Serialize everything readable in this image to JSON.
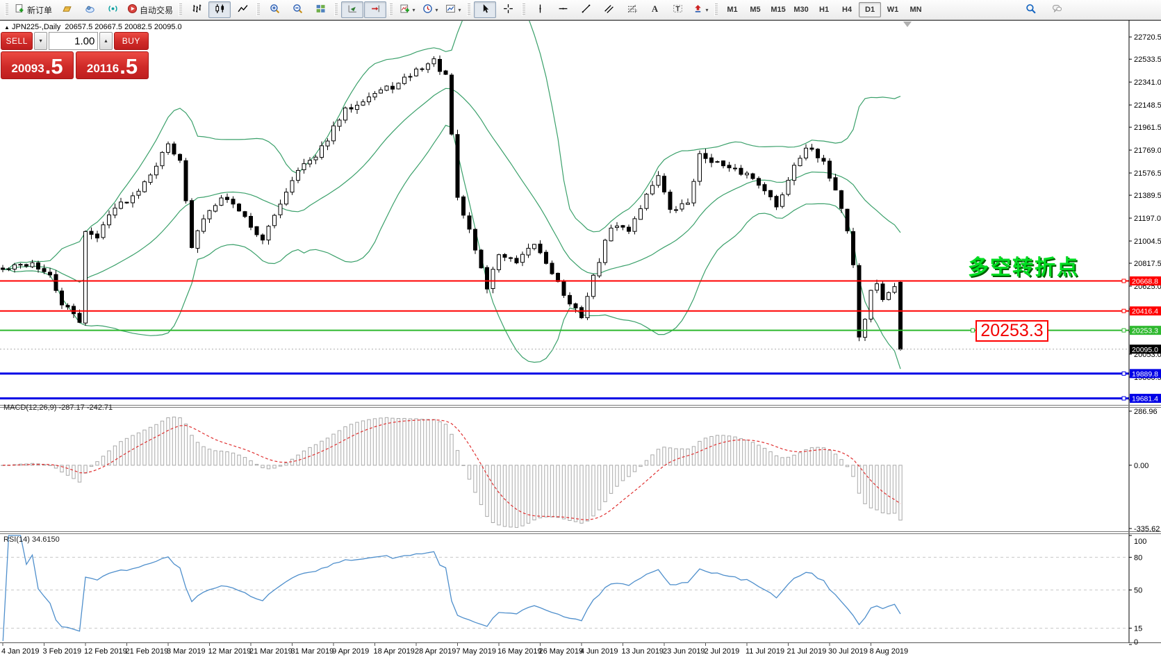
{
  "colors": {
    "accent_red": "#ff0000",
    "accent_green": "#2eb82e",
    "accent_blue": "#0000e6",
    "panel_red": "#cf2a28",
    "bull": "#ffffff",
    "bear": "#000000",
    "bands": "#3aa06a",
    "macd_signal": "#e03030",
    "macd_hist": "#a8a8a8",
    "rsi_line": "#4f8fcc",
    "bid_line": "#aaaaaa"
  },
  "toolbar": {
    "buttons": [
      {
        "name": "new-order",
        "icon": "new-order",
        "label": "新订单"
      },
      {
        "name": "market-watch",
        "icon": "gold"
      },
      {
        "name": "mql5-community",
        "icon": "cloud"
      },
      {
        "name": "signals",
        "icon": "signal"
      },
      {
        "name": "autotrading",
        "icon": "autotrading",
        "label": "自动交易"
      },
      {
        "name": "bar-chart",
        "icon": "bars",
        "sep": true
      },
      {
        "name": "candlestick-chart",
        "icon": "candles",
        "active": true
      },
      {
        "name": "line-chart",
        "icon": "linechart"
      },
      {
        "name": "zoom-in",
        "icon": "zoom-in",
        "sep": true
      },
      {
        "name": "zoom-out",
        "icon": "zoom-out"
      },
      {
        "name": "tile-windows",
        "icon": "tile"
      },
      {
        "name": "auto-scroll",
        "icon": "autoscroll",
        "sep": true,
        "active": true
      },
      {
        "name": "chart-shift",
        "icon": "shift",
        "active": true
      },
      {
        "name": "indicators-list",
        "icon": "indicators",
        "sep": true,
        "dropdown": true
      },
      {
        "name": "periods",
        "icon": "clock",
        "dropdown": true
      },
      {
        "name": "templates",
        "icon": "template",
        "dropdown": true
      },
      {
        "name": "cursor",
        "icon": "cursor",
        "sep": true,
        "active": true
      },
      {
        "name": "crosshair",
        "icon": "crosshair"
      },
      {
        "name": "vertical-line",
        "icon": "vline",
        "sep": true
      },
      {
        "name": "horizontal-line",
        "icon": "hline"
      },
      {
        "name": "trendline",
        "icon": "trend"
      },
      {
        "name": "equidistant-channel",
        "icon": "channel"
      },
      {
        "name": "fibonacci-retracement",
        "icon": "fibo"
      },
      {
        "name": "text",
        "icon": "textA"
      },
      {
        "name": "text-label",
        "icon": "labelT"
      },
      {
        "name": "arrows",
        "icon": "arrows",
        "dropdown": true
      }
    ],
    "timeframes": [
      "M1",
      "M5",
      "M15",
      "M30",
      "H1",
      "H4",
      "D1",
      "W1",
      "MN"
    ],
    "active_timeframe": "D1",
    "right_buttons": [
      {
        "name": "search",
        "icon": "search"
      },
      {
        "name": "community-chat",
        "icon": "chat"
      }
    ]
  },
  "symbol_info": {
    "symbol": "JPN225-,Daily",
    "open": "20657.5",
    "high": "20667.5",
    "low": "20082.5",
    "close": "20095.0"
  },
  "one_click": {
    "sell_label": "SELL",
    "buy_label": "BUY",
    "volume": "1.00",
    "sell_price_main": "20093",
    "sell_price_big": ".5",
    "buy_price_main": "20116",
    "buy_price_big": ".5"
  },
  "price_axis": {
    "ticks": [
      "22720.5",
      "22533.5",
      "22341.0",
      "22148.5",
      "21961.5",
      "21769.0",
      "21576.5",
      "21389.5",
      "21197.0",
      "21004.5",
      "20817.5",
      "20625.0",
      "20432.5",
      "20240.0",
      "20053.0",
      "19860.5",
      "19668.0"
    ]
  },
  "hlines": [
    {
      "name": "resistance-1",
      "label": "20668.8",
      "price": 20668.8,
      "color": "#ff0000",
      "width": 2
    },
    {
      "name": "resistance-2",
      "label": "20416.4",
      "price": 20416.4,
      "color": "#ff0000",
      "width": 2
    },
    {
      "name": "pivot-green",
      "label": "20253.3",
      "price": 20253.3,
      "color": "#2eb82e",
      "width": 2,
      "extra_handle_x": 1400
    },
    {
      "name": "support-1",
      "label": "19889.8",
      "price": 19889.8,
      "color": "#0000e6",
      "width": 3
    },
    {
      "name": "support-2",
      "label": "19681.4",
      "price": 19681.4,
      "color": "#0000e6",
      "width": 3
    }
  ],
  "current_price": {
    "label": "20095.0",
    "price": 20095.0
  },
  "annotation": {
    "text": "多空转折点"
  },
  "callout": {
    "text": "20253.3"
  },
  "macd": {
    "label": "MACD(12,26,9)",
    "values": "-287.17 -242.71",
    "axis": [
      "286.96",
      "0.00",
      "-335.62"
    ],
    "axis_values": [
      286.96,
      0,
      -335.62
    ]
  },
  "rsi": {
    "label": "RSI(14)",
    "value": "34.6150",
    "axis": [
      "100",
      "80",
      "50",
      "15",
      "0"
    ],
    "axis_values": [
      100,
      80,
      50,
      15,
      0
    ],
    "levels": [
      80,
      50,
      15
    ]
  },
  "dates": [
    "4 Jan 2019",
    "3 Feb 2019",
    "12 Feb 2019",
    "21 Feb 2019",
    "3 Mar 2019",
    "12 Mar 2019",
    "21 Mar 2019",
    "31 Mar 2019",
    "9 Apr 2019",
    "18 Apr 2019",
    "28 Apr 2019",
    "7 May 2019",
    "16 May 2019",
    "26 May 2019",
    "4 Jun 2019",
    "13 Jun 2019",
    "23 Jun 2019",
    "2 Jul 2019",
    "11 Jul 2019",
    "21 Jul 2019",
    "30 Jul 2019",
    "8 Aug 2019"
  ],
  "chart_data": {
    "type": "candlestick",
    "title": "JPN225- Daily with Bollinger Bands, MACD(12,26,9), RSI(14)",
    "bars": 153,
    "seed": 42,
    "noise": 26,
    "price_anchors": [
      [
        0,
        20760
      ],
      [
        3,
        20800
      ],
      [
        5,
        20820
      ],
      [
        8,
        20700
      ],
      [
        10,
        20480
      ],
      [
        12,
        20380
      ],
      [
        13,
        20330
      ],
      [
        14,
        21100
      ],
      [
        16,
        21020
      ],
      [
        18,
        21250
      ],
      [
        22,
        21380
      ],
      [
        26,
        21650
      ],
      [
        28,
        21820
      ],
      [
        30,
        21700
      ],
      [
        32,
        20950
      ],
      [
        34,
        21200
      ],
      [
        37,
        21390
      ],
      [
        40,
        21270
      ],
      [
        44,
        21000
      ],
      [
        47,
        21330
      ],
      [
        50,
        21620
      ],
      [
        53,
        21700
      ],
      [
        56,
        21950
      ],
      [
        58,
        22100
      ],
      [
        61,
        22200
      ],
      [
        64,
        22270
      ],
      [
        67,
        22320
      ],
      [
        70,
        22440
      ],
      [
        73,
        22520
      ],
      [
        75,
        22380
      ],
      [
        76,
        21900
      ],
      [
        77,
        21350
      ],
      [
        79,
        21100
      ],
      [
        82,
        20610
      ],
      [
        84,
        20900
      ],
      [
        87,
        20810
      ],
      [
        90,
        20980
      ],
      [
        93,
        20750
      ],
      [
        96,
        20460
      ],
      [
        98,
        20380
      ],
      [
        100,
        20700
      ],
      [
        103,
        21130
      ],
      [
        106,
        21100
      ],
      [
        109,
        21390
      ],
      [
        111,
        21570
      ],
      [
        113,
        21250
      ],
      [
        116,
        21330
      ],
      [
        118,
        21720
      ],
      [
        120,
        21690
      ],
      [
        123,
        21600
      ],
      [
        126,
        21570
      ],
      [
        129,
        21450
      ],
      [
        131,
        21280
      ],
      [
        134,
        21650
      ],
      [
        136,
        21800
      ],
      [
        139,
        21650
      ],
      [
        141,
        21450
      ],
      [
        143,
        21100
      ],
      [
        144,
        20810
      ],
      [
        145,
        20200
      ],
      [
        146,
        20350
      ],
      [
        147,
        20580
      ],
      [
        148,
        20650
      ],
      [
        149,
        20520
      ],
      [
        150,
        20550
      ],
      [
        151,
        20630
      ],
      [
        152,
        20657.5
      ]
    ],
    "last_bar_ohlc": [
      20657.5,
      20667.5,
      20082.5,
      20095.0
    ],
    "bollinger": {
      "period": 20,
      "deviation": 2
    },
    "macd": {
      "fast": 12,
      "slow": 26,
      "signal": 9
    },
    "rsi_period": 14,
    "ylim": [
      19620,
      22856
    ]
  }
}
